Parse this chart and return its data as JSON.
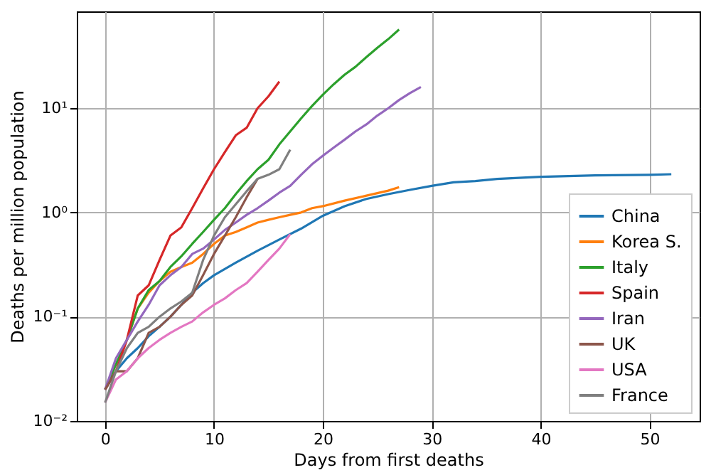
{
  "chart_data": {
    "type": "line",
    "xlabel": "Days from first deaths",
    "ylabel": "Deaths per million population",
    "log": "y",
    "grid": true,
    "legend": "bottom right",
    "marker": "none",
    "line_style": "solid",
    "xlim": [
      -2.6,
      54.6
    ],
    "xticks": [
      0,
      10,
      20,
      30,
      40,
      50
    ],
    "ylim": [
      0.01,
      85
    ],
    "yticks": [
      {
        "value": 0.01,
        "label": "10⁻²"
      },
      {
        "value": 0.1,
        "label": "10⁻¹"
      },
      {
        "value": 1,
        "label": "10⁰"
      },
      {
        "value": 10,
        "label": "10¹"
      }
    ],
    "series": [
      {
        "name": "China",
        "color": "#1f77b4",
        "x": [
          0,
          1,
          2,
          3,
          4,
          5,
          6,
          7,
          8,
          9,
          10,
          12,
          14,
          16,
          18,
          20,
          22,
          24,
          26,
          28,
          30,
          32,
          34,
          36,
          40,
          45,
          50,
          52
        ],
        "values": [
          0.02,
          0.03,
          0.04,
          0.05,
          0.065,
          0.08,
          0.1,
          0.13,
          0.17,
          0.21,
          0.25,
          0.33,
          0.43,
          0.55,
          0.7,
          0.93,
          1.15,
          1.35,
          1.5,
          1.65,
          1.8,
          1.95,
          2.0,
          2.1,
          2.2,
          2.27,
          2.3,
          2.33
        ]
      },
      {
        "name": "Korea S.",
        "color": "#ff7f0e",
        "x": [
          2,
          3,
          4,
          5,
          6,
          7,
          8,
          9,
          10,
          11,
          12,
          13,
          14,
          15,
          16,
          17,
          18,
          19,
          20,
          22,
          24,
          26,
          27
        ],
        "values": [
          0.06,
          0.12,
          0.17,
          0.22,
          0.27,
          0.3,
          0.33,
          0.4,
          0.5,
          0.6,
          0.65,
          0.72,
          0.8,
          0.85,
          0.9,
          0.95,
          1.0,
          1.1,
          1.15,
          1.3,
          1.45,
          1.62,
          1.75
        ]
      },
      {
        "name": "Italy",
        "color": "#2ca02c",
        "x": [
          0,
          1,
          2,
          3,
          4,
          5,
          6,
          7,
          8,
          9,
          10,
          11,
          12,
          13,
          14,
          15,
          16,
          17,
          18,
          19,
          20,
          21,
          22,
          23,
          24,
          25,
          26,
          27
        ],
        "values": [
          0.02,
          0.035,
          0.06,
          0.12,
          0.18,
          0.22,
          0.3,
          0.38,
          0.5,
          0.65,
          0.85,
          1.1,
          1.5,
          2.0,
          2.6,
          3.2,
          4.5,
          6.0,
          8,
          10.5,
          13.5,
          17,
          21,
          25,
          31,
          38,
          46,
          57
        ]
      },
      {
        "name": "Spain",
        "color": "#d62728",
        "x": [
          0,
          1,
          2,
          3,
          4,
          5,
          6,
          7,
          8,
          9,
          10,
          11,
          12,
          13,
          14,
          15,
          16
        ],
        "values": [
          0.02,
          0.03,
          0.06,
          0.16,
          0.2,
          0.35,
          0.6,
          0.72,
          1.1,
          1.7,
          2.6,
          3.8,
          5.5,
          6.5,
          10,
          13,
          18
        ]
      },
      {
        "name": "Iran",
        "color": "#9467bd",
        "x": [
          0,
          1,
          2,
          3,
          4,
          5,
          6,
          7,
          8,
          9,
          10,
          11,
          12,
          13,
          14,
          15,
          16,
          17,
          18,
          19,
          20,
          21,
          22,
          23,
          24,
          25,
          26,
          27,
          28,
          29
        ],
        "values": [
          0.02,
          0.04,
          0.06,
          0.09,
          0.13,
          0.2,
          0.25,
          0.3,
          0.4,
          0.45,
          0.55,
          0.68,
          0.8,
          0.95,
          1.1,
          1.3,
          1.55,
          1.8,
          2.3,
          2.9,
          3.5,
          4.2,
          5,
          6,
          7,
          8.5,
          10,
          12,
          14,
          16
        ]
      },
      {
        "name": "UK",
        "color": "#8c564b",
        "x": [
          0,
          1,
          2,
          3,
          4,
          5,
          6,
          7,
          8,
          9,
          10,
          11,
          12,
          13,
          14
        ],
        "values": [
          0.02,
          0.03,
          0.03,
          0.04,
          0.07,
          0.08,
          0.1,
          0.13,
          0.16,
          0.25,
          0.4,
          0.6,
          0.9,
          1.4,
          2.1
        ]
      },
      {
        "name": "USA",
        "color": "#e377c2",
        "x": [
          0,
          1,
          2,
          3,
          4,
          5,
          6,
          7,
          8,
          9,
          10,
          11,
          12,
          13,
          14,
          15,
          16,
          17
        ],
        "values": [
          0.015,
          0.025,
          0.03,
          0.04,
          0.05,
          0.06,
          0.07,
          0.08,
          0.09,
          0.11,
          0.13,
          0.15,
          0.18,
          0.21,
          0.27,
          0.35,
          0.45,
          0.62
        ]
      },
      {
        "name": "France",
        "color": "#7f7f7f",
        "x": [
          0,
          1,
          2,
          3,
          4,
          5,
          6,
          7,
          8,
          9,
          10,
          11,
          12,
          13,
          14,
          15,
          16,
          17
        ],
        "values": [
          0.015,
          0.03,
          0.05,
          0.07,
          0.08,
          0.1,
          0.12,
          0.14,
          0.17,
          0.35,
          0.6,
          0.9,
          1.2,
          1.6,
          2.1,
          2.3,
          2.6,
          4.0
        ]
      }
    ]
  }
}
